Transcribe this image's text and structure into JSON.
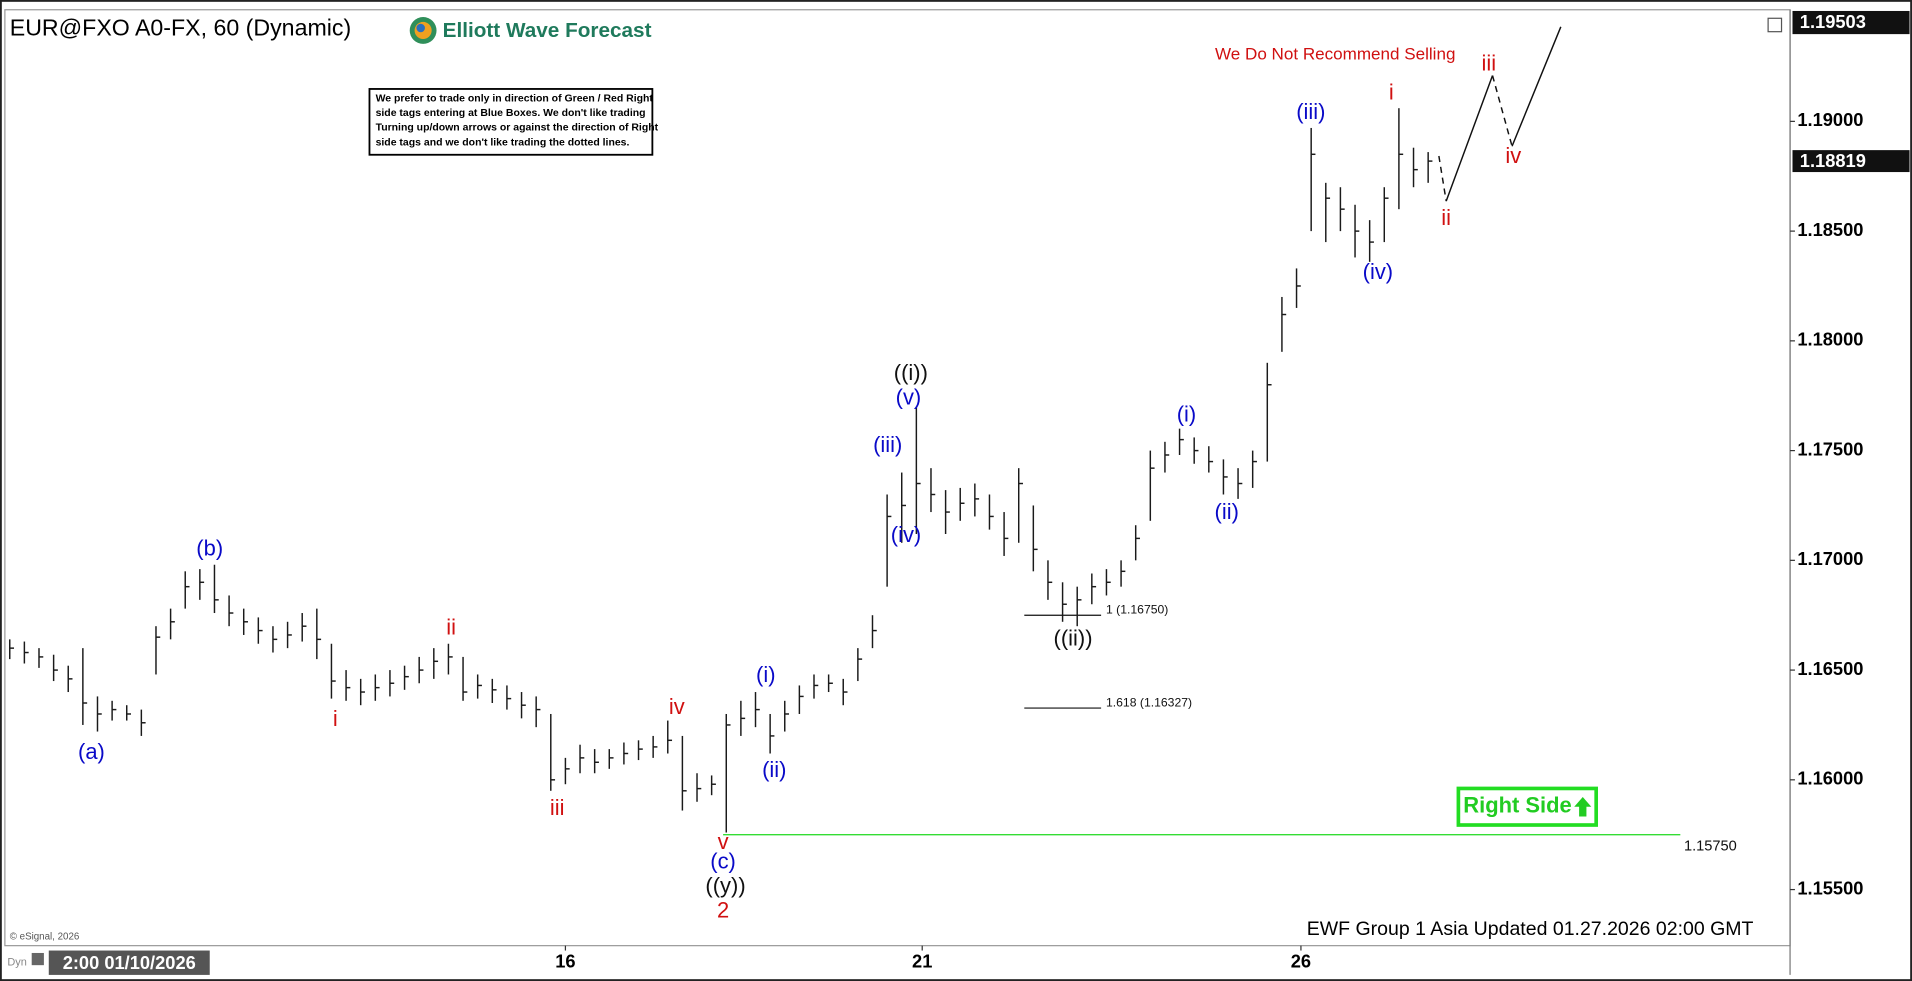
{
  "chart_data": {
    "type": "hlc",
    "title": "EUR@FXO A0-FX, 60 (Dynamic)",
    "brand": "Elliott Wave Forecast",
    "disclaimer": [
      "We prefer to trade only in direction of Green / Red Right",
      "side tags entering at Blue Boxes. We don't like trading",
      "Turning up/down arrows or against the direction of Right",
      "side tags and we don't like trading the dotted lines."
    ],
    "warning": "We Do Not Recommend Selling",
    "right_side": "Right Side",
    "footer": "EWF Group 1 Asia Updated 01.27.2026 02:00 GMT",
    "copyright": "© eSignal, 2026",
    "mode": "Dyn",
    "cursor_time": "2:00 01/10/2026",
    "color": "#1a1a1a",
    "ylim": [
      1.1525,
      1.19503
    ],
    "xlim": [
      -0.25,
      121.75
    ],
    "yticks": [
      {
        "value": 1.155,
        "label": "1.15500"
      },
      {
        "value": 1.16,
        "label": "1.16000"
      },
      {
        "value": 1.165,
        "label": "1.16500"
      },
      {
        "value": 1.17,
        "label": "1.17000"
      },
      {
        "value": 1.175,
        "label": "1.17500"
      },
      {
        "value": 1.18,
        "label": "1.18000"
      },
      {
        "value": 1.185,
        "label": "1.18500"
      },
      {
        "value": 1.19,
        "label": "1.19000"
      }
    ],
    "xticks": [
      {
        "value": 38,
        "label": "16"
      },
      {
        "value": 62.4,
        "label": "21"
      },
      {
        "value": 88.3,
        "label": "26"
      }
    ],
    "high": [
      1.1664,
      1.1663,
      1.166,
      1.1657,
      1.1652,
      1.166,
      1.1638,
      1.1636,
      1.1634,
      1.1632,
      1.167,
      1.1678,
      1.1695,
      1.1696,
      1.1698,
      1.1684,
      1.1678,
      1.1674,
      1.167,
      1.1672,
      1.1676,
      1.1678,
      1.1662,
      1.165,
      1.1646,
      1.1648,
      1.165,
      1.1652,
      1.1656,
      1.166,
      1.1662,
      1.1656,
      1.1648,
      1.1646,
      1.1643,
      1.164,
      1.1638,
      1.163,
      1.161,
      1.1616,
      1.1614,
      1.1614,
      1.1617,
      1.1618,
      1.162,
      1.1627,
      1.162,
      1.1603,
      1.1602,
      1.163,
      1.1636,
      1.164,
      1.163,
      1.1636,
      1.1643,
      1.1648,
      1.1648,
      1.1646,
      1.166,
      1.1675,
      1.173,
      1.174,
      1.177,
      1.1742,
      1.1732,
      1.1733,
      1.1735,
      1.173,
      1.1722,
      1.1742,
      1.1725,
      1.17,
      1.169,
      1.1688,
      1.1694,
      1.1696,
      1.17,
      1.1716,
      1.175,
      1.1754,
      1.176,
      1.1756,
      1.1752,
      1.1746,
      1.1742,
      1.175,
      1.179,
      1.182,
      1.1833,
      1.1897,
      1.1872,
      1.187,
      1.1862,
      1.1855,
      1.187,
      1.1906,
      1.1888,
      1.1886
    ],
    "low": [
      1.1655,
      1.1653,
      1.1651,
      1.1645,
      1.164,
      1.1625,
      1.1622,
      1.1627,
      1.1627,
      1.162,
      1.1648,
      1.1664,
      1.1678,
      1.1682,
      1.1676,
      1.167,
      1.1666,
      1.1662,
      1.1658,
      1.166,
      1.1663,
      1.1655,
      1.1637,
      1.1636,
      1.1634,
      1.1636,
      1.1638,
      1.1641,
      1.1644,
      1.1646,
      1.1648,
      1.1636,
      1.1637,
      1.1635,
      1.1632,
      1.1628,
      1.1624,
      1.1595,
      1.1598,
      1.1603,
      1.1603,
      1.1605,
      1.1607,
      1.1609,
      1.161,
      1.1612,
      1.1586,
      1.159,
      1.1593,
      1.1576,
      1.162,
      1.1624,
      1.1612,
      1.1622,
      1.163,
      1.1637,
      1.164,
      1.1634,
      1.1645,
      1.166,
      1.1688,
      1.1708,
      1.1712,
      1.1722,
      1.1712,
      1.1718,
      1.172,
      1.1714,
      1.1702,
      1.1708,
      1.1695,
      1.1682,
      1.1672,
      1.167,
      1.168,
      1.1684,
      1.1688,
      1.17,
      1.1718,
      1.174,
      1.1748,
      1.1744,
      1.174,
      1.173,
      1.1728,
      1.1733,
      1.1745,
      1.1795,
      1.1815,
      1.185,
      1.1845,
      1.185,
      1.1838,
      1.1836,
      1.1845,
      1.186,
      1.187,
      1.1872
    ],
    "close": [
      1.166,
      1.1658,
      1.1656,
      1.165,
      1.1646,
      1.1635,
      1.163,
      1.1632,
      1.163,
      1.1626,
      1.1665,
      1.1672,
      1.1688,
      1.169,
      1.1682,
      1.1676,
      1.1672,
      1.1668,
      1.1664,
      1.1666,
      1.167,
      1.1664,
      1.1645,
      1.1642,
      1.164,
      1.1642,
      1.1644,
      1.1647,
      1.165,
      1.1654,
      1.1656,
      1.164,
      1.1643,
      1.1641,
      1.1637,
      1.1634,
      1.1632,
      1.16,
      1.1605,
      1.161,
      1.1608,
      1.161,
      1.1612,
      1.1614,
      1.1615,
      1.1618,
      1.1595,
      1.1596,
      1.1598,
      1.1625,
      1.1628,
      1.1632,
      1.162,
      1.163,
      1.1638,
      1.1643,
      1.1644,
      1.164,
      1.1655,
      1.1668,
      1.172,
      1.1725,
      1.1735,
      1.173,
      1.1722,
      1.1726,
      1.1728,
      1.172,
      1.171,
      1.1735,
      1.1705,
      1.169,
      1.168,
      1.1682,
      1.1688,
      1.169,
      1.1695,
      1.171,
      1.1742,
      1.1748,
      1.1755,
      1.175,
      1.1745,
      1.1738,
      1.1735,
      1.1745,
      1.178,
      1.1812,
      1.1825,
      1.1885,
      1.1865,
      1.186,
      1.185,
      1.1845,
      1.1865,
      1.1885,
      1.1878,
      1.18819
    ],
    "fib_levels": [
      {
        "value": 1.1675,
        "label": "1 (1.16750)"
      },
      {
        "value": 1.16327,
        "label": "1.618 (1.16327)"
      }
    ],
    "support": {
      "value": 1.1575,
      "label": "1.15750",
      "color": "#33dd33"
    },
    "wave_labels": [
      {
        "text": "(a)",
        "color": "#0a0ac8"
      },
      {
        "text": "(b)",
        "color": "#0a0ac8"
      },
      {
        "text": "i",
        "color": "#d01010"
      },
      {
        "text": "ii",
        "color": "#d01010"
      },
      {
        "text": "iii",
        "color": "#d01010"
      },
      {
        "text": "iv",
        "color": "#d01010"
      },
      {
        "text": "v",
        "color": "#d01010"
      },
      {
        "text": "(c)",
        "color": "#0a0ac8"
      },
      {
        "text": "((y))",
        "color": "#111111"
      },
      {
        "text": "2",
        "color": "#d01010"
      },
      {
        "text": "(i)",
        "color": "#0a0ac8"
      },
      {
        "text": "(ii)",
        "color": "#0a0ac8"
      },
      {
        "text": "(iii)",
        "color": "#0a0ac8"
      },
      {
        "text": "(iv)",
        "color": "#0a0ac8"
      },
      {
        "text": "(v)",
        "color": "#0a0ac8"
      },
      {
        "text": "((i))",
        "color": "#111111"
      },
      {
        "text": "((ii))",
        "color": "#111111"
      },
      {
        "text": "(i)",
        "color": "#0a0ac8"
      },
      {
        "text": "(ii)",
        "color": "#0a0ac8"
      },
      {
        "text": "(iii)",
        "color": "#0a0ac8"
      },
      {
        "text": "(iv)",
        "color": "#0a0ac8"
      },
      {
        "text": "i",
        "color": "#d01010"
      },
      {
        "text": "ii",
        "color": "#d01010"
      },
      {
        "text": "iii",
        "color": "#d01010"
      },
      {
        "text": "iv",
        "color": "#d01010"
      }
    ]
  }
}
